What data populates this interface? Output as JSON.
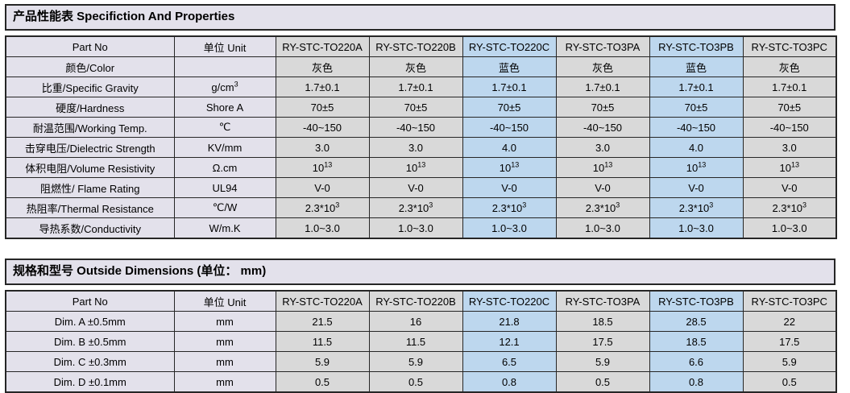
{
  "colors": {
    "title_bg": "#E3E1EB",
    "label_column_bg": "#E3E1EB",
    "cell_gray": "#D9D9D9",
    "cell_highlight_blue": "#BDD7EE",
    "border": "#262626",
    "text": "#000000"
  },
  "spec_table": {
    "title": "产品性能表 Specifiction And Properties",
    "header": {
      "part_no": "Part No",
      "unit": "单位 Unit",
      "part_numbers": [
        "RY-STC-TO220A",
        "RY-STC-TO220B",
        "RY-STC-TO220C",
        "RY-STC-TO3PA",
        "RY-STC-TO3PB",
        "RY-STC-TO3PC"
      ]
    },
    "highlighted_columns": [
      "RY-STC-TO220C",
      "RY-STC-TO3PB"
    ],
    "rows": [
      {
        "label": "颜色/Color",
        "unit": "",
        "values": [
          "灰色",
          "灰色",
          "蓝色",
          "灰色",
          "蓝色",
          "灰色"
        ]
      },
      {
        "label": "比重/Specific Gravity",
        "unit": "g/cm^3",
        "values": [
          "1.7±0.1",
          "1.7±0.1",
          "1.7±0.1",
          "1.7±0.1",
          "1.7±0.1",
          "1.7±0.1"
        ]
      },
      {
        "label": "硬度/Hardness",
        "unit": "Shore A",
        "values": [
          "70±5",
          "70±5",
          "70±5",
          "70±5",
          "70±5",
          "70±5"
        ]
      },
      {
        "label": "耐温范围/Working Temp.",
        "unit": "℃",
        "values": [
          "-40~150",
          "-40~150",
          "-40~150",
          "-40~150",
          "-40~150",
          "-40~150"
        ]
      },
      {
        "label": "击穿电压/Dielectric Strength",
        "unit": "KV/mm",
        "values": [
          "3.0",
          "3.0",
          "4.0",
          "3.0",
          "4.0",
          "3.0"
        ]
      },
      {
        "label": "体积电阻/Volume Resistivity",
        "unit": "Ω.cm",
        "values": [
          "10^13",
          "10^13",
          "10^13",
          "10^13",
          "10^13",
          "10^13"
        ]
      },
      {
        "label": "阻燃性/ Flame Rating",
        "unit": "UL94",
        "values": [
          "V-0",
          "V-0",
          "V-0",
          "V-0",
          "V-0",
          "V-0"
        ]
      },
      {
        "label": "热阻率/Thermal Resistance",
        "unit": "℃/W",
        "values": [
          "2.3*10^3",
          "2.3*10^3",
          "2.3*10^3",
          "2.3*10^3",
          "2.3*10^3",
          "2.3*10^3"
        ]
      },
      {
        "label": "导热系数/Conductivity",
        "unit": "W/m.K",
        "values": [
          "1.0~3.0",
          "1.0~3.0",
          "1.0~3.0",
          "1.0~3.0",
          "1.0~3.0",
          "1.0~3.0"
        ]
      }
    ]
  },
  "dimensions_table": {
    "title": "规格和型号 Outside Dimensions  (单位： mm)",
    "header": {
      "part_no": "Part No",
      "unit": "单位 Unit",
      "part_numbers": [
        "RY-STC-TO220A",
        "RY-STC-TO220B",
        "RY-STC-TO220C",
        "RY-STC-TO3PA",
        "RY-STC-TO3PB",
        "RY-STC-TO3PC"
      ]
    },
    "rows": [
      {
        "label": "Dim. A ±0.5mm",
        "unit": "mm",
        "values": [
          "21.5",
          "16",
          "21.8",
          "18.5",
          "28.5",
          "22"
        ]
      },
      {
        "label": "Dim. B ±0.5mm",
        "unit": "mm",
        "values": [
          "11.5",
          "11.5",
          "12.1",
          "17.5",
          "18.5",
          "17.5"
        ]
      },
      {
        "label": "Dim. C ±0.3mm",
        "unit": "mm",
        "values": [
          "5.9",
          "5.9",
          "6.5",
          "5.9",
          "6.6",
          "5.9"
        ]
      },
      {
        "label": "Dim. D ±0.1mm",
        "unit": "mm",
        "values": [
          "0.5",
          "0.5",
          "0.8",
          "0.5",
          "0.8",
          "0.5"
        ]
      }
    ]
  }
}
